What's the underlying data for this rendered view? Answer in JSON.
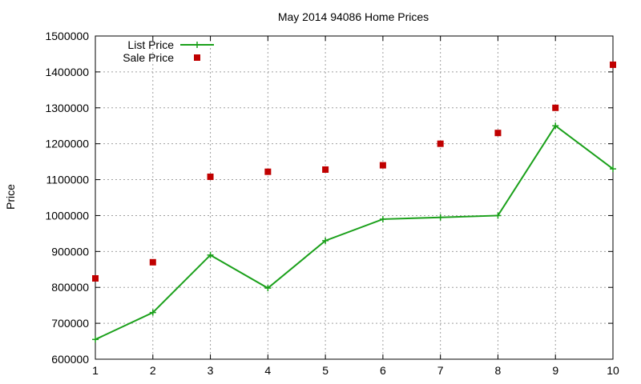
{
  "chart_data": {
    "type": "line",
    "title": "May 2014 94086 Home Prices",
    "xlabel": "",
    "ylabel": "Price",
    "x": [
      1,
      2,
      3,
      4,
      5,
      6,
      7,
      8,
      9,
      10
    ],
    "xlim": [
      1,
      10
    ],
    "ylim": [
      600000,
      1500000
    ],
    "yticks": [
      600000,
      700000,
      800000,
      900000,
      1000000,
      1100000,
      1200000,
      1300000,
      1400000,
      1500000
    ],
    "xticks": [
      1,
      2,
      3,
      4,
      5,
      6,
      7,
      8,
      9,
      10
    ],
    "grid": true,
    "legend_position": "top-left",
    "series": [
      {
        "name": "List Price",
        "style": "line-with-plus-markers",
        "color": "#1aa01a",
        "values": [
          655000,
          730000,
          890000,
          798000,
          930000,
          990000,
          995000,
          1000000,
          1250000,
          1130000
        ]
      },
      {
        "name": "Sale Price",
        "style": "square-markers",
        "color": "#c00000",
        "values": [
          825000,
          870000,
          1108000,
          1122000,
          1128000,
          1140000,
          1200000,
          1230000,
          1300000,
          1420000
        ]
      }
    ]
  }
}
